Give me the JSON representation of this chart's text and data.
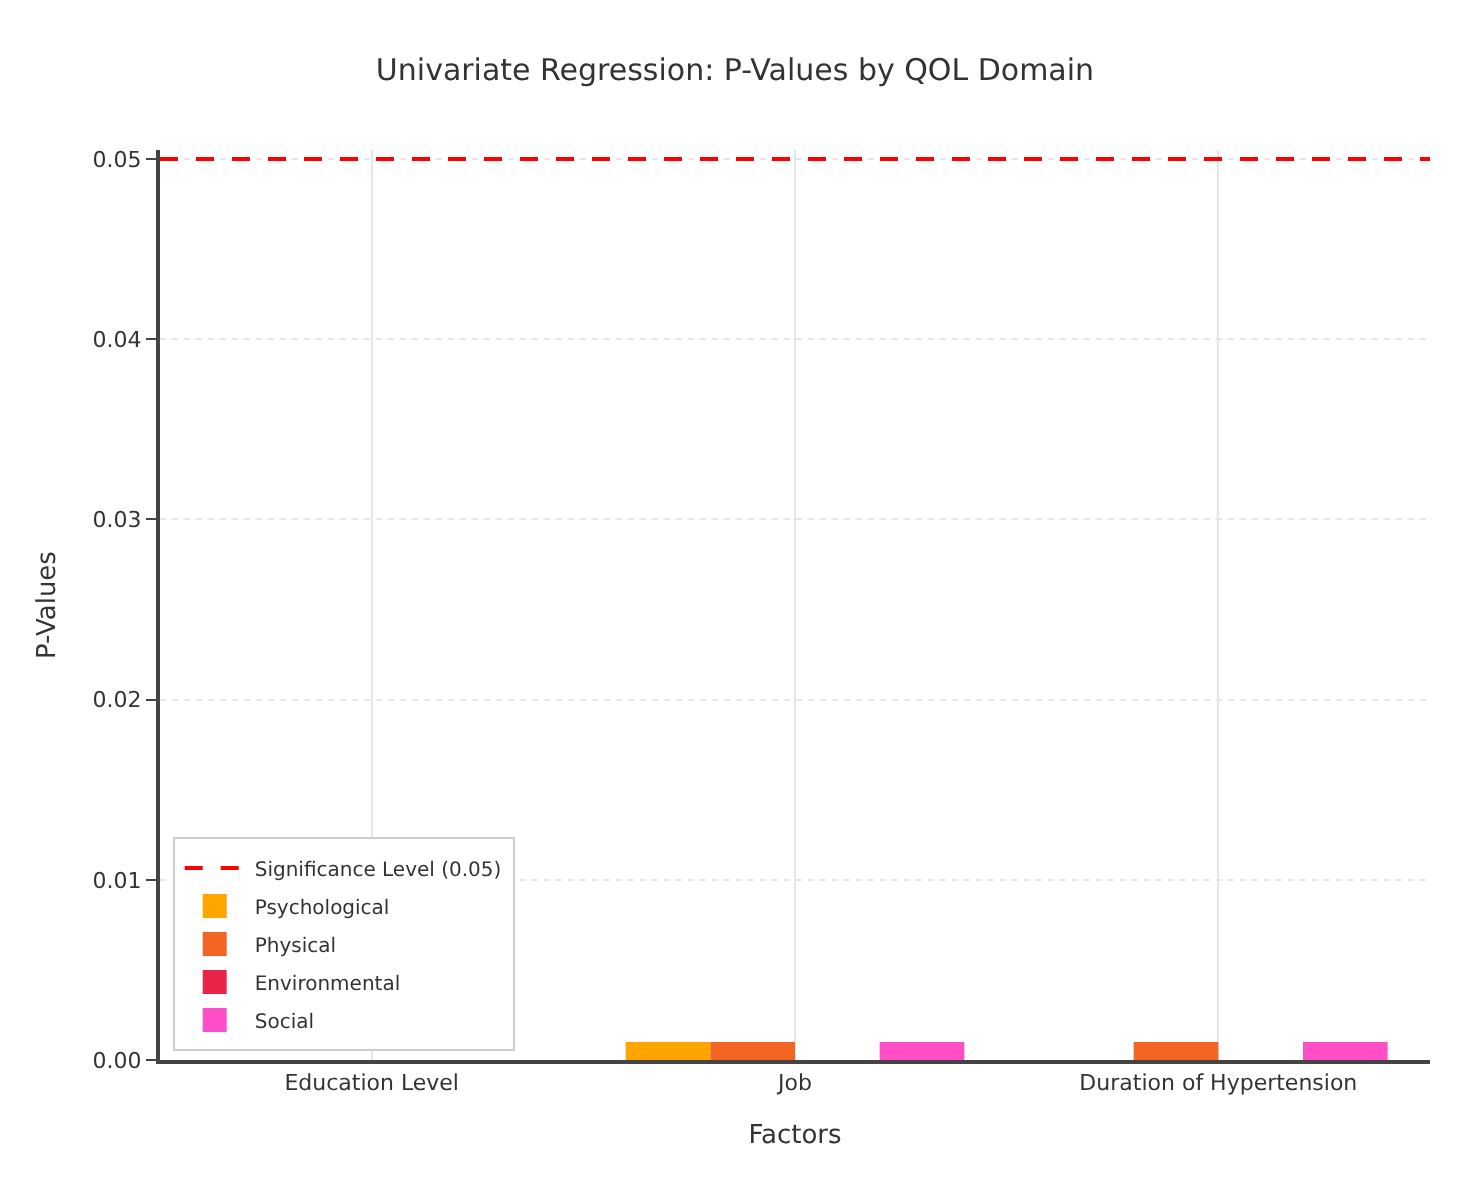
{
  "chart_data": {
    "type": "bar",
    "title": "Univariate Regression: P-Values by QOL Domain",
    "xlabel": "Factors",
    "ylabel": "P-Values",
    "categories": [
      "Education Level",
      "Job",
      "Duration of Hypertension"
    ],
    "series": [
      {
        "name": "Psychological",
        "color": "#ffa500",
        "values": [
          0,
          0.001,
          0
        ]
      },
      {
        "name": "Physical",
        "color": "#f26522",
        "values": [
          0,
          0.001,
          0.001
        ]
      },
      {
        "name": "Environmental",
        "color": "#e8244a",
        "values": [
          0,
          0,
          0
        ]
      },
      {
        "name": "Social",
        "color": "#ff4fc8",
        "values": [
          0,
          0.001,
          0.001
        ]
      }
    ],
    "ylim": [
      0,
      0.0505
    ],
    "yticks": [
      {
        "value": 0,
        "label": "0.00"
      },
      0.01,
      0.02,
      0.03,
      0.04,
      0.05
    ],
    "ref_lines": [
      {
        "axis": "y",
        "value": 0.05,
        "label": "Significance Level (0.05)",
        "color": "#ff0000",
        "line_style": "dashed"
      }
    ],
    "grid": true,
    "legend": "bottom left"
  }
}
